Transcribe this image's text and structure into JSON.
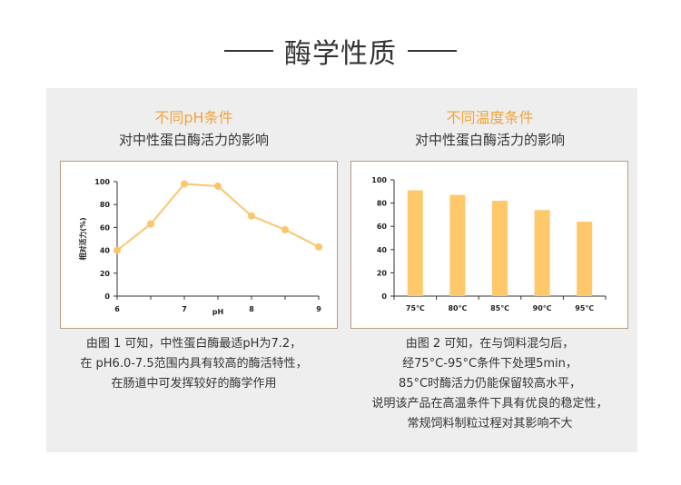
{
  "page": {
    "title": "酶学性质"
  },
  "left": {
    "title": "不同pH条件",
    "subtitle": "对中性蛋白酶活力的影响",
    "description": [
      "由图 1 可知，中性蛋白酶最适pH为7.2，",
      "在 pH6.0-7.5范围内具有较高的酶活特性，",
      "在肠道中可发挥较好的酶学作用"
    ]
  },
  "right": {
    "title": "不同温度条件",
    "subtitle": "对中性蛋白酶活力的影响",
    "description": [
      "由图 2 可知，在与饲料混匀后，",
      "经75°C-95°C条件下处理5min，",
      "85°C时酶活力仍能保留较高水平，",
      "说明该产品在高温条件下具有优良的稳定性，",
      "常规饲料制粒过程对其影响不大"
    ]
  },
  "colors": {
    "accent": "#f0a33c",
    "line": "#fbc56b",
    "bar": "#ffc86b",
    "border": "#b89b7a",
    "panel": "#eeeeee"
  },
  "chart_data": [
    {
      "type": "line",
      "title": "不同pH条件对中性蛋白酶活力的影响",
      "xlabel": "pH",
      "ylabel": "相对活力(%)",
      "x": [
        6.0,
        6.5,
        7.0,
        7.5,
        8.0,
        8.5,
        9.0
      ],
      "values": [
        40,
        63,
        98,
        96,
        70,
        58,
        43
      ],
      "xticks": [
        6,
        7,
        8,
        9
      ],
      "xtick_labels": [
        "6",
        "7",
        "8",
        "9"
      ],
      "yticks": [
        0,
        20,
        40,
        60,
        80,
        100
      ],
      "xlim": [
        6,
        9
      ],
      "ylim": [
        0,
        100
      ]
    },
    {
      "type": "bar",
      "title": "不同温度条件对中性蛋白酶活力的影响",
      "categories": [
        "75℃",
        "80℃",
        "85℃",
        "90℃",
        "95℃"
      ],
      "values": [
        91,
        87,
        82,
        74,
        64
      ],
      "yticks": [
        0,
        20,
        40,
        60,
        80,
        100
      ],
      "ylim": [
        0,
        100
      ]
    }
  ]
}
